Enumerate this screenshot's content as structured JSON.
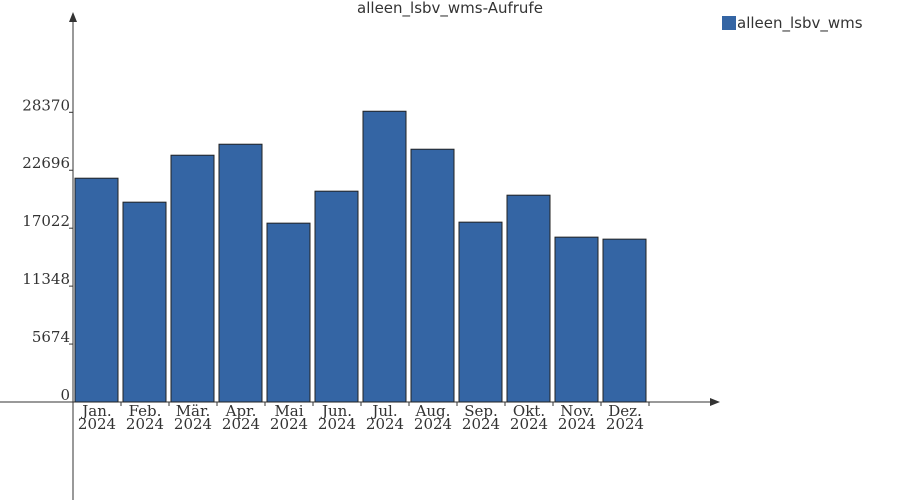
{
  "chart_data": {
    "type": "bar",
    "title": "alleen_lsbv_wms-Aufrufe",
    "categories": [
      [
        "Jan.",
        "2024"
      ],
      [
        "Feb.",
        "2024"
      ],
      [
        "Mär.",
        "2024"
      ],
      [
        "Apr.",
        "2024"
      ],
      [
        "Mai",
        "2024"
      ],
      [
        "Jun.",
        "2024"
      ],
      [
        "Jul.",
        "2024"
      ],
      [
        "Aug.",
        "2024"
      ],
      [
        "Sep.",
        "2024"
      ],
      [
        "Okt.",
        "2024"
      ],
      [
        "Nov.",
        "2024"
      ],
      [
        "Dez.",
        "2024"
      ]
    ],
    "series": [
      {
        "name": "alleen_lsbv_wms",
        "color": "#3465a4",
        "values": [
          21917,
          19570,
          24168,
          25245,
          17515,
          20646,
          28474,
          24755,
          17613,
          20254,
          16145,
          15949
        ]
      }
    ],
    "ylim": [
      0,
      37900
    ],
    "yticks": [
      0,
      5674,
      11348,
      17022,
      22696,
      28370
    ],
    "grid": false,
    "legend": "top-right"
  }
}
